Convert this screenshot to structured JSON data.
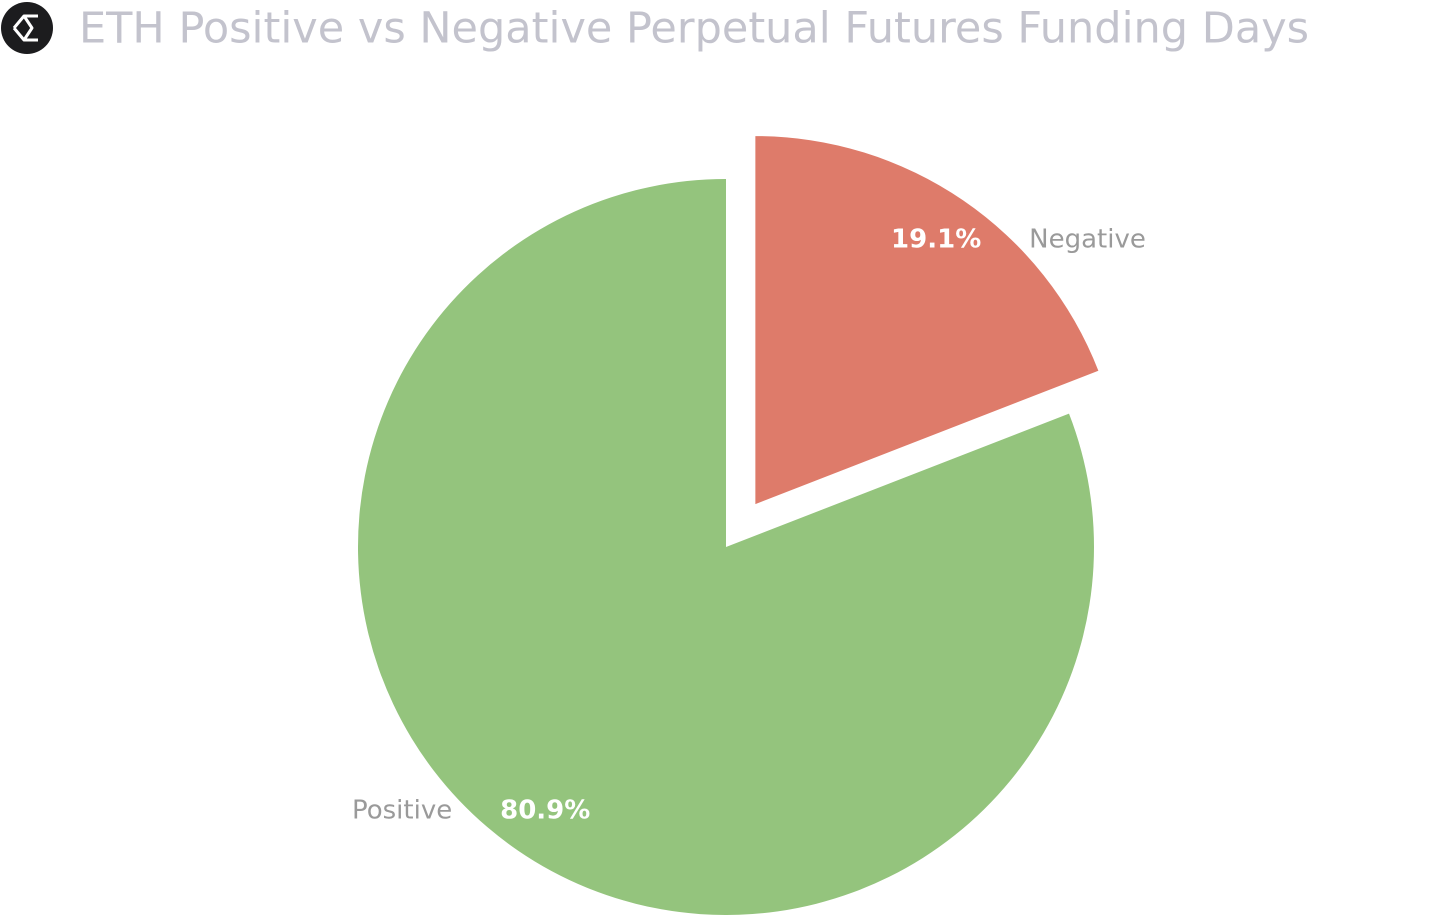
{
  "chart_data": {
    "type": "pie",
    "title": "ETH Positive vs Negative Perpetual Futures Funding Days",
    "categories": [
      "Negative",
      "Positive"
    ],
    "values": [
      19.1,
      80.9
    ],
    "value_labels": [
      "19.1%",
      "80.9%"
    ],
    "colors": [
      "#de7b6a",
      "#94c47d"
    ],
    "explode": [
      true,
      false
    ],
    "start": "top",
    "direction": "clockwise"
  }
}
